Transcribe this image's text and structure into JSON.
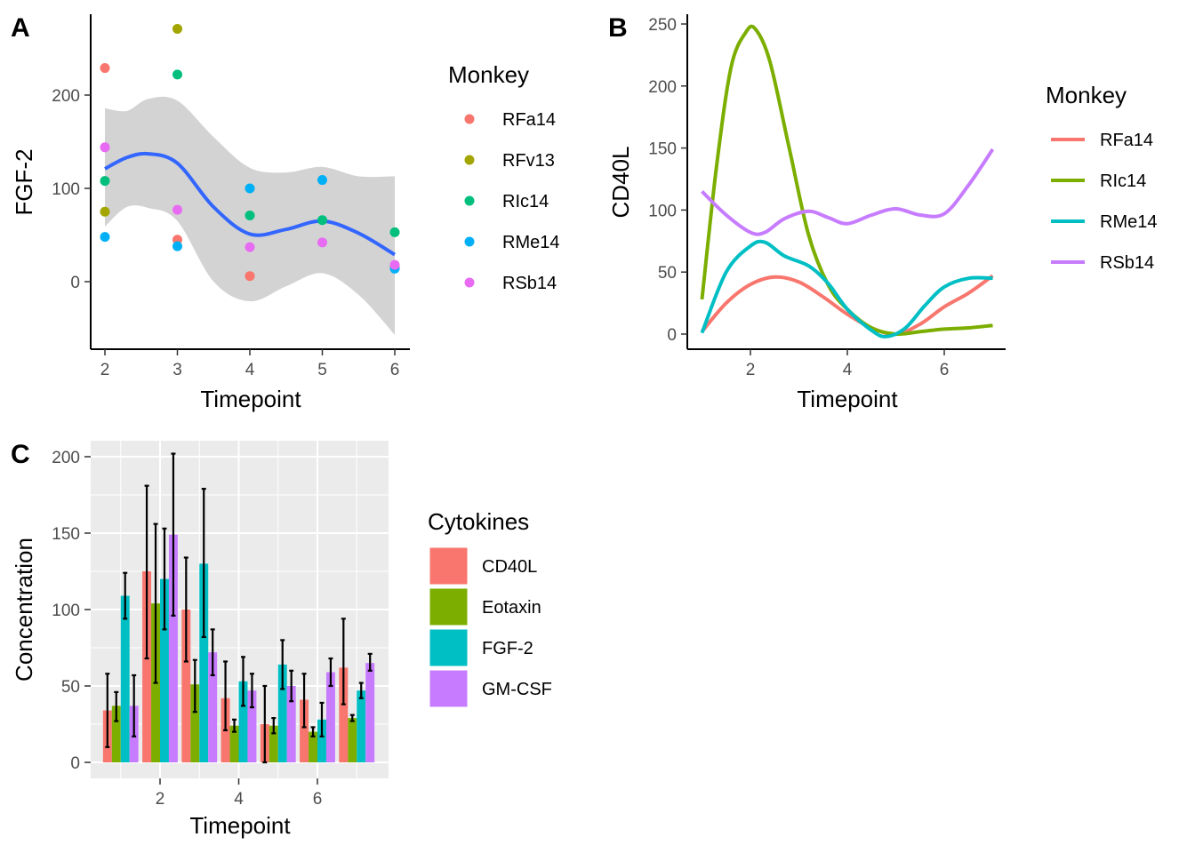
{
  "colors": {
    "red": "#F8766D",
    "olive": "#A3A500",
    "green": "#00BF7D",
    "blue": "#00B0F6",
    "magenta": "#E76BF3",
    "green4": "#7CAE00",
    "teal4": "#00BFC4",
    "purple4": "#C77CFF",
    "smooth": "#3366FF",
    "ribbon": "#D3D3D3",
    "panel_bg": "#EBEBEB"
  },
  "chart_data": [
    {
      "id": "A",
      "panel_label": "A",
      "type": "scatter",
      "xlabel": "Timepoint",
      "ylabel": "FGF-2",
      "xlim": [
        1.8,
        6.2
      ],
      "ylim": [
        -72,
        285
      ],
      "xticks": [
        2,
        3,
        4,
        5,
        6
      ],
      "yticks": [
        0,
        100,
        200
      ],
      "legend": {
        "title": "Monkey",
        "placement": "right"
      },
      "series": [
        {
          "name": "RFa14",
          "color_key": "red",
          "points": [
            [
              2,
              229
            ],
            [
              3,
              45
            ],
            [
              4,
              6
            ],
            [
              6,
              16
            ]
          ]
        },
        {
          "name": "RFv13",
          "color_key": "olive",
          "points": [
            [
              2,
              75
            ],
            [
              3,
              271
            ]
          ]
        },
        {
          "name": "RIc14",
          "color_key": "green",
          "points": [
            [
              2,
              108
            ],
            [
              3,
              222
            ],
            [
              4,
              71
            ],
            [
              5,
              66
            ],
            [
              6,
              53
            ]
          ]
        },
        {
          "name": "RMe14",
          "color_key": "blue",
          "points": [
            [
              2,
              48
            ],
            [
              3,
              38
            ],
            [
              4,
              100
            ],
            [
              5,
              109
            ],
            [
              6,
              14
            ]
          ]
        },
        {
          "name": "RSb14",
          "color_key": "magenta",
          "points": [
            [
              2,
              144
            ],
            [
              3,
              77
            ],
            [
              4,
              37
            ],
            [
              5,
              42
            ],
            [
              6,
              18
            ]
          ]
        }
      ],
      "smooth": {
        "x": [
          2,
          2.3,
          2.6,
          3,
          3.5,
          4,
          4.5,
          5,
          5.5,
          6
        ],
        "y": [
          121,
          133,
          137,
          127,
          80,
          51,
          56,
          65,
          52,
          29
        ],
        "lower": [
          59,
          80,
          79,
          65,
          0,
          -21,
          -5,
          9,
          -14,
          -57
        ],
        "upper": [
          186,
          183,
          196,
          194,
          155,
          122,
          117,
          123,
          113,
          113
        ]
      }
    },
    {
      "id": "B",
      "panel_label": "B",
      "type": "line",
      "xlabel": "Timepoint",
      "ylabel": "CD40L",
      "xlim": [
        0.7,
        7.3
      ],
      "ylim": [
        -14,
        260
      ],
      "xticks": [
        2,
        4,
        6
      ],
      "yticks": [
        0,
        50,
        100,
        150,
        200,
        250
      ],
      "legend": {
        "title": "Monkey",
        "placement": "right"
      },
      "series": [
        {
          "name": "RFa14",
          "color_key": "red",
          "points": [
            [
              1,
              2
            ],
            [
              1.5,
              25
            ],
            [
              2,
              40
            ],
            [
              2.5,
              46
            ],
            [
              3,
              42
            ],
            [
              3.5,
              30
            ],
            [
              4,
              16
            ],
            [
              4.5,
              5
            ],
            [
              5,
              0
            ],
            [
              5.5,
              8
            ],
            [
              6,
              22
            ],
            [
              6.5,
              33
            ],
            [
              7,
              47
            ]
          ]
        },
        {
          "name": "RIc14",
          "color_key": "green4",
          "points": [
            [
              1,
              28
            ],
            [
              1.3,
              135
            ],
            [
              1.6,
              215
            ],
            [
              1.9,
              243
            ],
            [
              2.1,
              246
            ],
            [
              2.4,
              220
            ],
            [
              2.8,
              150
            ],
            [
              3.2,
              80
            ],
            [
              3.6,
              40
            ],
            [
              4,
              20
            ],
            [
              4.5,
              5
            ],
            [
              5,
              0
            ],
            [
              5.5,
              2
            ],
            [
              6,
              4
            ],
            [
              6.5,
              5
            ],
            [
              7,
              7
            ]
          ]
        },
        {
          "name": "RMe14",
          "color_key": "teal4",
          "points": [
            [
              1,
              1
            ],
            [
              1.5,
              50
            ],
            [
              2,
              71
            ],
            [
              2.3,
              74
            ],
            [
              2.7,
              63
            ],
            [
              3.2,
              55
            ],
            [
              3.6,
              41
            ],
            [
              4,
              20
            ],
            [
              4.5,
              3
            ],
            [
              4.8,
              -2
            ],
            [
              5.2,
              5
            ],
            [
              5.6,
              23
            ],
            [
              6,
              38
            ],
            [
              6.5,
              45
            ],
            [
              7,
              45
            ]
          ]
        },
        {
          "name": "RSb14",
          "color_key": "purple4",
          "points": [
            [
              1,
              115
            ],
            [
              1.5,
              96
            ],
            [
              2,
              82
            ],
            [
              2.3,
              82
            ],
            [
              2.7,
              93
            ],
            [
              3.2,
              99
            ],
            [
              3.6,
              94
            ],
            [
              4,
              89
            ],
            [
              4.5,
              96
            ],
            [
              5,
              101
            ],
            [
              5.5,
              96
            ],
            [
              6,
              97
            ],
            [
              6.5,
              120
            ],
            [
              7,
              149
            ]
          ]
        }
      ]
    },
    {
      "id": "C",
      "panel_label": "C",
      "type": "bar",
      "xlabel": "Timepoint",
      "ylabel": "Concentration",
      "xlim": [
        0.4,
        7.6
      ],
      "ylim": [
        -10,
        210
      ],
      "xticks": [
        2,
        4,
        6
      ],
      "yticks": [
        0,
        50,
        100,
        150,
        200
      ],
      "grid": true,
      "legend": {
        "title": "Cytokines",
        "placement": "right"
      },
      "x": [
        1,
        2,
        3,
        4,
        5,
        6,
        7
      ],
      "series": [
        {
          "name": "CD40L",
          "color_key": "red",
          "values": [
            34,
            125,
            100,
            42,
            25,
            41,
            62
          ],
          "err_low": [
            10,
            68,
            66,
            21,
            0,
            23,
            38
          ],
          "err_high": [
            58,
            181,
            134,
            66,
            50,
            58,
            94
          ]
        },
        {
          "name": "Eotaxin",
          "color_key": "green4",
          "values": [
            37,
            104,
            51,
            24,
            24,
            20,
            29
          ],
          "err_low": [
            27,
            52,
            33,
            20,
            19,
            17,
            27
          ],
          "err_high": [
            46,
            156,
            67,
            28,
            29,
            23,
            31
          ]
        },
        {
          "name": "FGF-2",
          "color_key": "teal4",
          "values": [
            109,
            120,
            130,
            53,
            64,
            28,
            47
          ],
          "err_low": [
            94,
            87,
            82,
            37,
            48,
            17,
            42
          ],
          "err_high": [
            124,
            153,
            179,
            69,
            80,
            39,
            52
          ]
        },
        {
          "name": "GM-CSF",
          "color_key": "purple4",
          "values": [
            37,
            149,
            72,
            47,
            50,
            59,
            65
          ],
          "err_low": [
            17,
            96,
            57,
            36,
            40,
            50,
            60
          ],
          "err_high": [
            57,
            202,
            87,
            58,
            60,
            68,
            71
          ]
        }
      ]
    }
  ]
}
